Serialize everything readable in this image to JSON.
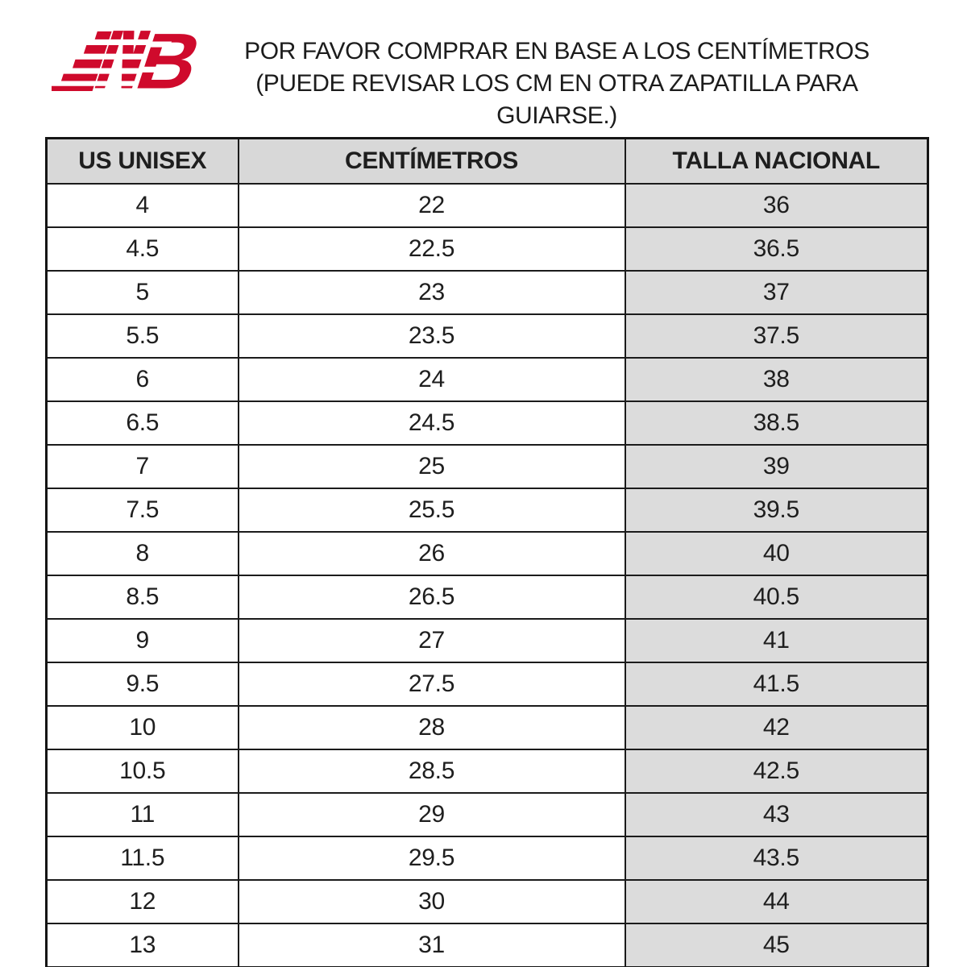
{
  "brand": {
    "logo": "new-balance-logo",
    "logo_color": "#cf0a2c"
  },
  "notice": {
    "line1": "POR FAVOR COMPRAR EN BASE A LOS CENTÍMETROS",
    "line2": "(PUEDE REVISAR LOS CM EN OTRA ZAPATILLA PARA",
    "line3": "GUIARSE.)"
  },
  "chart_data": {
    "type": "table",
    "title": "POR FAVOR COMPRAR EN BASE A LOS CENTÍMETROS (PUEDE REVISAR LOS CM EN OTRA ZAPATILLA PARA GUIARSE.)",
    "columns": [
      "US UNISEX",
      "CENTÍMETROS",
      "TALLA NACIONAL"
    ],
    "rows": [
      [
        "4",
        "22",
        "36"
      ],
      [
        "4.5",
        "22.5",
        "36.5"
      ],
      [
        "5",
        "23",
        "37"
      ],
      [
        "5.5",
        "23.5",
        "37.5"
      ],
      [
        "6",
        "24",
        "38"
      ],
      [
        "6.5",
        "24.5",
        "38.5"
      ],
      [
        "7",
        "25",
        "39"
      ],
      [
        "7.5",
        "25.5",
        "39.5"
      ],
      [
        "8",
        "26",
        "40"
      ],
      [
        "8.5",
        "26.5",
        "40.5"
      ],
      [
        "9",
        "27",
        "41"
      ],
      [
        "9.5",
        "27.5",
        "41.5"
      ],
      [
        "10",
        "28",
        "42"
      ],
      [
        "10.5",
        "28.5",
        "42.5"
      ],
      [
        "11",
        "29",
        "43"
      ],
      [
        "11.5",
        "29.5",
        "43.5"
      ],
      [
        "12",
        "30",
        "44"
      ],
      [
        "13",
        "31",
        "45"
      ]
    ],
    "layout": {
      "header_bg": "#d8d8d8",
      "highlight_column": "TALLA NACIONAL",
      "highlight_column_bg": "#dcdcdc",
      "border_color": "#1b1b1b",
      "grid": "on"
    }
  }
}
